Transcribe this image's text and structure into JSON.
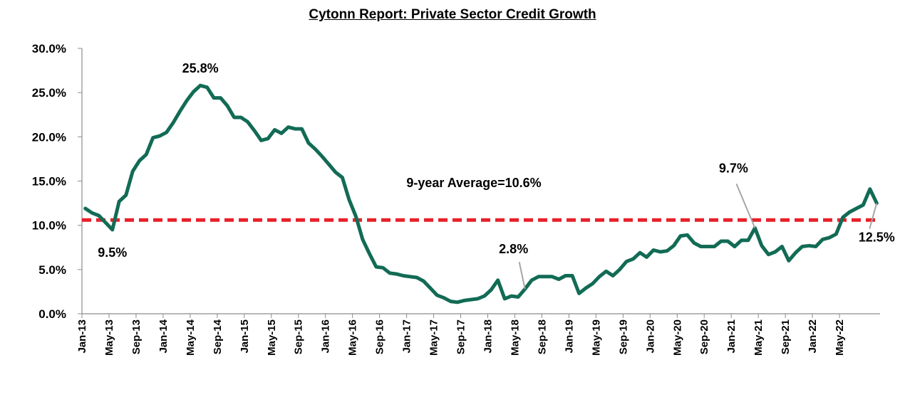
{
  "chart_data": {
    "type": "line",
    "title": "Cytonn Report: Private Sector Credit Growth",
    "xlabel": "",
    "ylabel": "",
    "ylim": [
      0,
      30
    ],
    "y_ticks": [
      "0.0%",
      "5.0%",
      "10.0%",
      "15.0%",
      "20.0%",
      "25.0%",
      "30.0%"
    ],
    "x_tick_labels": [
      "Jan-13",
      "May-13",
      "Sep-13",
      "Jan-14",
      "May-14",
      "Sep-14",
      "Jan-15",
      "May-15",
      "Sep-15",
      "Jan-16",
      "May-16",
      "Sep-16",
      "Jan-17",
      "May-17",
      "Sep-17",
      "Jan-18",
      "May-18",
      "Sep-18",
      "Jan-19",
      "May-19",
      "Sep-19",
      "Jan-20",
      "May-20",
      "Sep-20",
      "Jan-21",
      "May-21",
      "Sep-21",
      "Jan-22",
      "May-22"
    ],
    "x_start": "Jan-13",
    "x_end": "Sep-22",
    "series": [
      {
        "color": "#126b55",
        "values": [
          11.9,
          11.4,
          11.1,
          10.3,
          9.5,
          12.7,
          13.4,
          16.1,
          17.3,
          18.0,
          19.9,
          20.1,
          20.5,
          21.6,
          22.9,
          24.1,
          25.1,
          25.8,
          25.6,
          24.4,
          24.4,
          23.5,
          22.2,
          22.2,
          21.7,
          20.7,
          19.6,
          19.8,
          20.8,
          20.4,
          21.1,
          20.9,
          20.9,
          19.3,
          18.6,
          17.8,
          16.9,
          16.0,
          15.4,
          12.9,
          11.0,
          8.4,
          6.8,
          5.3,
          5.2,
          4.6,
          4.5,
          4.3,
          4.2,
          4.1,
          3.7,
          2.9,
          2.1,
          1.8,
          1.4,
          1.3,
          1.5,
          1.6,
          1.7,
          2.0,
          2.7,
          3.8,
          1.7,
          2.0,
          1.9,
          2.8,
          3.8,
          4.2,
          4.2,
          4.2,
          3.9,
          4.3,
          4.3,
          2.3,
          2.9,
          3.4,
          4.2,
          4.8,
          4.3,
          5.0,
          5.9,
          6.2,
          6.9,
          6.4,
          7.2,
          7.0,
          7.1,
          7.7,
          8.8,
          8.9,
          8.0,
          7.6,
          7.6,
          7.6,
          8.2,
          8.2,
          7.6,
          8.3,
          8.3,
          9.7,
          7.7,
          6.7,
          7.0,
          7.6,
          6.0,
          6.9,
          7.6,
          7.7,
          7.6,
          8.4,
          8.6,
          9.0,
          10.9,
          11.5,
          11.9,
          12.3,
          14.1,
          12.5
        ]
      }
    ],
    "average": {
      "value": 10.6,
      "color": "#e8202a",
      "label": "9-year Average=10.6%"
    },
    "annotations": [
      {
        "text": "25.8%",
        "index": 17,
        "value": 25.8
      },
      {
        "text": "9.5%",
        "index": 4,
        "value": 9.5
      },
      {
        "text": "2.8%",
        "index": 65,
        "value": 2.8
      },
      {
        "text": "9.7%",
        "index": 99,
        "value": 9.7
      },
      {
        "text": "12.5%",
        "index": 117,
        "value": 12.5
      }
    ],
    "grid": false,
    "legend": "none"
  }
}
